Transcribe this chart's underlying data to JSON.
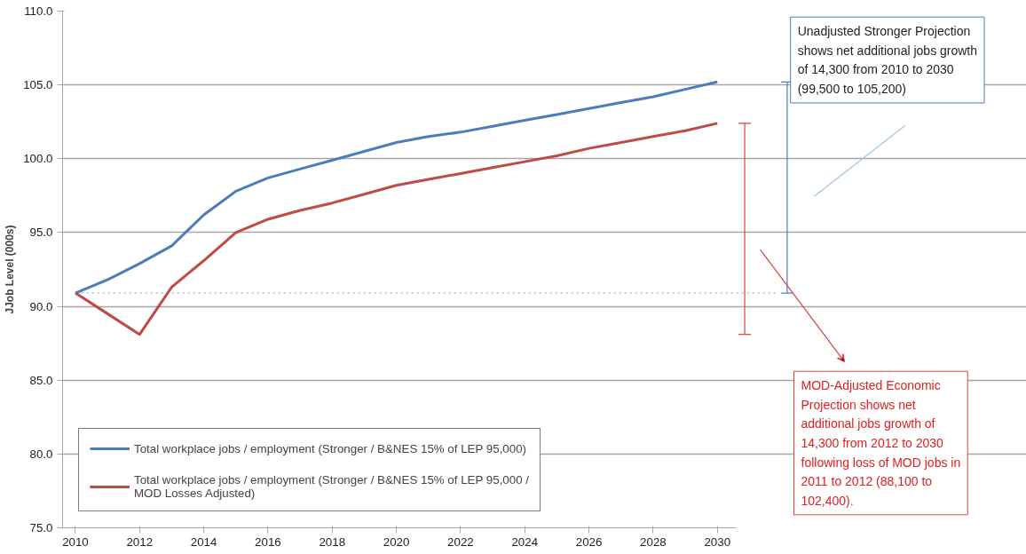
{
  "chart_data": {
    "type": "line",
    "ylabel": "JJob Level (000s)",
    "x": [
      2010,
      2011,
      2012,
      2013,
      2014,
      2015,
      2016,
      2017,
      2018,
      2019,
      2020,
      2021,
      2022,
      2023,
      2024,
      2025,
      2026,
      2027,
      2028,
      2029,
      2030
    ],
    "series": [
      {
        "name": "Total workplace jobs / employment (Stronger / B&NES 15% of LEP 95,000)",
        "color": "#4a7ebb",
        "values": [
          90.9,
          91.8,
          92.9,
          94.1,
          96.2,
          97.8,
          98.7,
          99.3,
          99.9,
          100.5,
          101.1,
          101.5,
          101.8,
          102.2,
          102.6,
          103.0,
          103.4,
          103.8,
          104.2,
          104.7,
          105.2
        ]
      },
      {
        "name": "Total workplace jobs / employment (Stronger / B&NES 15% of LEP 95,000 / MOD Losses Adjusted)",
        "color": "#be4b48",
        "values": [
          90.9,
          89.5,
          88.1,
          91.3,
          93.1,
          95.0,
          95.9,
          96.5,
          97.0,
          97.6,
          98.2,
          98.6,
          99.0,
          99.4,
          99.8,
          100.2,
          100.7,
          101.1,
          101.5,
          101.9,
          102.4
        ]
      }
    ],
    "xlim": [
      2009.6,
      2030.6
    ],
    "ylim": [
      75,
      110
    ],
    "xticks": [
      2010,
      2012,
      2014,
      2016,
      2018,
      2020,
      2022,
      2024,
      2026,
      2028,
      2030
    ],
    "yticks": [
      {
        "value": 75,
        "label": "75.0"
      },
      {
        "value": 80,
        "label": "80.0"
      },
      {
        "value": 85,
        "label": "85.0"
      },
      {
        "value": 90,
        "label": "90.0"
      },
      {
        "value": 95,
        "label": "95.0"
      },
      {
        "value": 100,
        "label": "100.0"
      },
      {
        "value": 105,
        "label": "105.0"
      },
      {
        "value": 110,
        "label": "110.0"
      }
    ],
    "grid": "y",
    "legend": "bottom left",
    "marker": "none",
    "line_style": "solid",
    "ref_lines": [
      {
        "axis": "y",
        "value": 90.9,
        "color": "#9dc3e6",
        "line_style": "dotted"
      }
    ],
    "annotations": [
      "Unadjusted Stronger Projection shows net additional jobs growth of 14,300 from 2010 to 2030 (99,500 to 105,200)",
      "MOD-Adjusted Economic Projection shows net additional jobs growth of 14,300 from 2012 to 2030 following loss of MOD jobs in 2011 to 2012 (88,100 to 102,400)."
    ]
  }
}
